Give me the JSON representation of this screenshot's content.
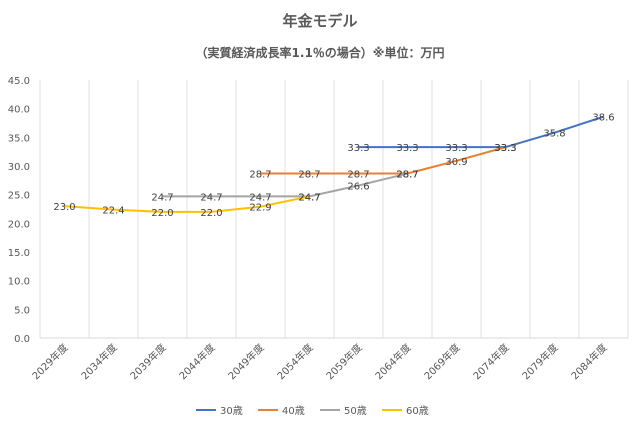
{
  "chart_data": {
    "type": "line",
    "title": "年金モデル",
    "subtitle": "（実質経済成長率1.1％の場合）※単位：万円",
    "xlabel": "",
    "ylabel": "",
    "ylim": [
      0,
      45
    ],
    "yticks": [
      "0.0",
      "5.0",
      "10.0",
      "15.0",
      "20.0",
      "25.0",
      "30.0",
      "35.0",
      "40.0",
      "45.0"
    ],
    "categories": [
      "2029年度",
      "2034年度",
      "2039年度",
      "2044年度",
      "2049年度",
      "2054年度",
      "2059年度",
      "2064年度",
      "2069年度",
      "2074年度",
      "2079年度",
      "2084年度"
    ],
    "grid": "vertical",
    "legend_position": "bottom",
    "series": [
      {
        "name": "30歳",
        "color": "#4472C4",
        "values": [
          null,
          null,
          null,
          null,
          null,
          null,
          33.3,
          33.3,
          33.3,
          33.3,
          35.8,
          38.6
        ],
        "labels": [
          null,
          null,
          null,
          null,
          null,
          null,
          "33.3",
          "33.3",
          "33.3",
          "33.3",
          "35.8",
          "38.6"
        ]
      },
      {
        "name": "40歳",
        "color": "#ED7D31",
        "values": [
          null,
          null,
          null,
          null,
          28.7,
          28.7,
          28.7,
          28.7,
          30.9,
          33.3,
          null,
          null
        ],
        "labels": [
          null,
          null,
          null,
          null,
          "28.7",
          "28.7",
          "28.7",
          "28.7",
          "30.9",
          "33.3",
          null,
          null
        ]
      },
      {
        "name": "50歳",
        "color": "#A5A5A5",
        "values": [
          null,
          null,
          24.7,
          24.7,
          24.7,
          24.7,
          26.6,
          28.7,
          null,
          null,
          null,
          null
        ],
        "labels": [
          null,
          null,
          "24.7",
          "24.7",
          "24.7",
          "24.7",
          "26.6",
          "28.7",
          null,
          null,
          null,
          null
        ]
      },
      {
        "name": "60歳",
        "color": "#FFC000",
        "values": [
          23.0,
          22.4,
          22.0,
          22.0,
          22.9,
          24.7,
          null,
          null,
          null,
          null,
          null,
          null
        ],
        "labels": [
          "23.0",
          "22.4",
          "22.0",
          "22.0",
          "22.9",
          "24.7",
          null,
          null,
          null,
          null,
          null,
          null
        ]
      }
    ]
  }
}
